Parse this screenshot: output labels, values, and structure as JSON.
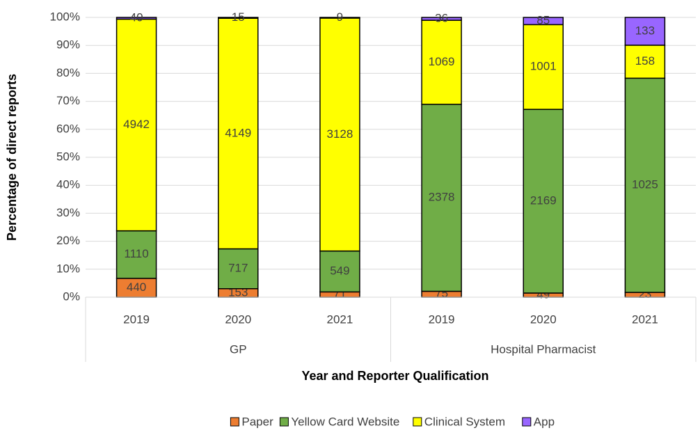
{
  "chart_data": {
    "type": "bar",
    "stacked": "percent",
    "y_label": "Percentage of direct reports",
    "x_label": "Year and Reporter Qualification",
    "groups": [
      {
        "name": "GP",
        "categories": [
          "2019",
          "2020",
          "2021"
        ]
      },
      {
        "name": "Hospital Pharmacist",
        "categories": [
          "2019",
          "2020",
          "2021"
        ]
      }
    ],
    "series": [
      {
        "name": "Paper",
        "color": "#ED7D31",
        "values": [
          440,
          153,
          71,
          75,
          49,
          23
        ]
      },
      {
        "name": "Yellow Card Website",
        "color": "#70AD47",
        "values": [
          1110,
          717,
          549,
          2378,
          2169,
          1025
        ]
      },
      {
        "name": "Clinical System",
        "color": "#FFFF00",
        "values": [
          4942,
          4149,
          3128,
          1069,
          1001,
          158
        ]
      },
      {
        "name": "App",
        "color": "#9966FF",
        "values": [
          40,
          15,
          9,
          36,
          85,
          133
        ]
      }
    ],
    "ylim": [
      0,
      100
    ],
    "yticks": [
      {
        "value": 0,
        "label": "0%"
      },
      {
        "value": 10,
        "label": "10%"
      },
      {
        "value": 20,
        "label": "20%"
      },
      {
        "value": 30,
        "label": "30%"
      },
      {
        "value": 40,
        "label": "40%"
      },
      {
        "value": 50,
        "label": "50%"
      },
      {
        "value": 60,
        "label": "60%"
      },
      {
        "value": 70,
        "label": "70%"
      },
      {
        "value": 80,
        "label": "80%"
      },
      {
        "value": 90,
        "label": "90%"
      },
      {
        "value": 100,
        "label": "100%"
      }
    ],
    "grid": true,
    "legend": "bottom"
  }
}
